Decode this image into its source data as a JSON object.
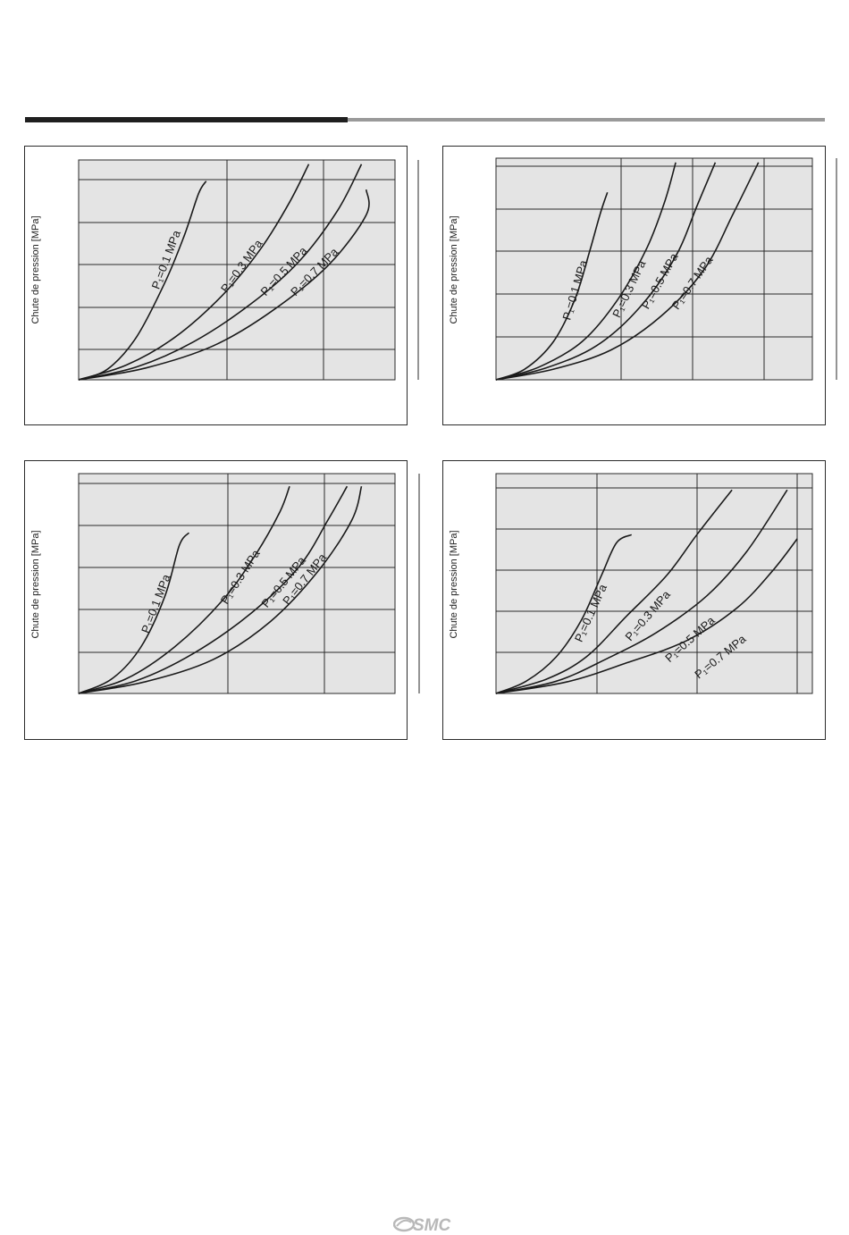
{
  "page": {
    "logo_text": "SMC"
  },
  "colors": {
    "plot_background": "#e4e4e4",
    "grid": "#2a2a2a",
    "curve": "#1a1a1a",
    "rule_dark": "#1f1f1f",
    "rule_light": "#9a9a9a",
    "logo": "#b8b8b8"
  },
  "chart_data": [
    {
      "type": "line",
      "ylabel": "Chute de pression [MPa]",
      "xlabel": "",
      "xlim": [
        0,
        3.3
      ],
      "ylim": [
        0,
        5.2
      ],
      "grid": true,
      "series": [
        {
          "name": "P₁=0.1 MPa",
          "x": [
            0,
            0.3,
            0.6,
            0.9,
            1.1,
            1.25,
            1.33
          ],
          "y": [
            0,
            0.25,
            1.0,
            2.3,
            3.4,
            4.4,
            4.7
          ]
        },
        {
          "name": "P₁=0.3 MPa",
          "x": [
            0,
            0.5,
            1.0,
            1.5,
            1.9,
            2.2,
            2.4
          ],
          "y": [
            0,
            0.35,
            1.0,
            2.0,
            3.1,
            4.2,
            5.1
          ]
        },
        {
          "name": "P₁=0.5 MPa",
          "x": [
            0,
            0.6,
            1.2,
            1.8,
            2.3,
            2.7,
            2.95
          ],
          "y": [
            0,
            0.3,
            0.9,
            1.8,
            2.8,
            4.0,
            5.1
          ]
        },
        {
          "name": "P₁=0.7 MPa",
          "x": [
            0,
            0.7,
            1.4,
            2.0,
            2.6,
            3.0,
            3.0
          ],
          "y": [
            0,
            0.28,
            0.8,
            1.6,
            2.7,
            3.9,
            4.5
          ]
        }
      ]
    },
    {
      "type": "line",
      "ylabel": "Chute de pression [MPa]",
      "xlabel": "",
      "xlim": [
        0,
        4.4
      ],
      "ylim": [
        0,
        5.2
      ],
      "grid": true,
      "series": [
        {
          "name": "P₁=0.1 MPa",
          "x": [
            0,
            0.4,
            0.8,
            1.1,
            1.3,
            1.45,
            1.55
          ],
          "y": [
            0,
            0.25,
            0.9,
            1.9,
            3.0,
            3.9,
            4.4
          ]
        },
        {
          "name": "P₁=0.3 MPa",
          "x": [
            0,
            0.6,
            1.2,
            1.7,
            2.1,
            2.35,
            2.5
          ],
          "y": [
            0,
            0.3,
            0.9,
            1.9,
            3.1,
            4.2,
            5.1
          ]
        },
        {
          "name": "P₁=0.5 MPa",
          "x": [
            0,
            0.7,
            1.4,
            2.0,
            2.5,
            2.8,
            3.05
          ],
          "y": [
            0,
            0.28,
            0.8,
            1.7,
            2.9,
            4.1,
            5.1
          ]
        },
        {
          "name": "P₁=0.7 MPa",
          "x": [
            0,
            0.8,
            1.6,
            2.3,
            2.9,
            3.3,
            3.65
          ],
          "y": [
            0,
            0.25,
            0.7,
            1.5,
            2.6,
            3.9,
            5.1
          ]
        }
      ]
    },
    {
      "type": "line",
      "ylabel": "Chute de pression [MPa]",
      "xlabel": "",
      "xlim": [
        0,
        3.3
      ],
      "ylim": [
        0,
        5.2
      ],
      "grid": true,
      "series": [
        {
          "name": "P₁=0.1 MPa",
          "x": [
            0,
            0.35,
            0.65,
            0.9,
            1.05,
            1.15
          ],
          "y": [
            0,
            0.35,
            1.1,
            2.3,
            3.5,
            3.8
          ]
        },
        {
          "name": "P₁=0.3 MPa",
          "x": [
            0,
            0.5,
            1.0,
            1.5,
            1.85,
            2.1,
            2.2
          ],
          "y": [
            0,
            0.35,
            1.1,
            2.2,
            3.3,
            4.3,
            4.9
          ]
        },
        {
          "name": "P₁=0.5 MPa",
          "x": [
            0,
            0.6,
            1.2,
            1.8,
            2.3,
            2.6,
            2.8
          ],
          "y": [
            0,
            0.3,
            0.95,
            1.9,
            3.0,
            4.1,
            4.9
          ]
        },
        {
          "name": "P₁=0.7 MPa",
          "x": [
            0,
            0.7,
            1.4,
            2.0,
            2.5,
            2.85,
            2.95
          ],
          "y": [
            0,
            0.28,
            0.8,
            1.7,
            2.9,
            4.1,
            4.9
          ]
        }
      ]
    },
    {
      "type": "line",
      "ylabel": "Chute de pression [MPa]",
      "xlabel": "",
      "xlim": [
        0,
        3.15
      ],
      "ylim": [
        0,
        5.4
      ],
      "grid": true,
      "series": [
        {
          "name": "P₁=0.1 MPa",
          "x": [
            0,
            0.3,
            0.6,
            0.85,
            1.05,
            1.2,
            1.35
          ],
          "y": [
            0,
            0.3,
            0.9,
            1.8,
            2.9,
            3.7,
            3.9
          ]
        },
        {
          "name": "P₁=0.3 MPa",
          "x": [
            0,
            0.5,
            0.9,
            1.3,
            1.7,
            2.0,
            2.35
          ],
          "y": [
            0,
            0.35,
            0.9,
            1.9,
            2.9,
            3.9,
            5.0
          ]
        },
        {
          "name": "P₁=0.5 MPa",
          "x": [
            0,
            0.6,
            1.1,
            1.6,
            2.1,
            2.5,
            2.9
          ],
          "y": [
            0,
            0.3,
            0.85,
            1.5,
            2.4,
            3.5,
            5.0
          ]
        },
        {
          "name": "P₁=0.7 MPa",
          "x": [
            0,
            0.7,
            1.3,
            1.9,
            2.4,
            2.75,
            3.0
          ],
          "y": [
            0,
            0.28,
            0.75,
            1.3,
            2.1,
            3.0,
            3.8
          ]
        }
      ]
    }
  ]
}
